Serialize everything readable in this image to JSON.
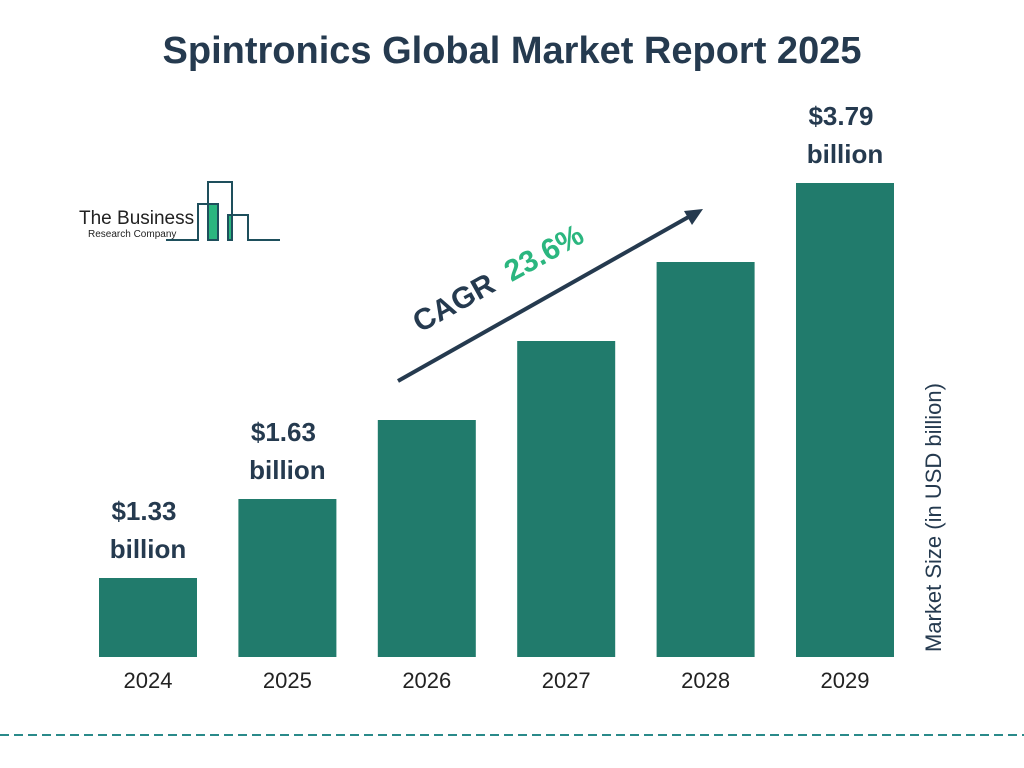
{
  "title": "Spintronics Global Market Report 2025",
  "logo": {
    "line1": "The Business",
    "line2": "Research Company"
  },
  "colors": {
    "bar": "#217b6c",
    "accent": "#2bb67f",
    "text": "#253a4f"
  },
  "chart_data": {
    "type": "bar",
    "title": "Spintronics Global Market Report 2025",
    "categories": [
      "2024",
      "2025",
      "2026",
      "2027",
      "2028",
      "2029"
    ],
    "values": [
      1.33,
      1.63,
      null,
      null,
      null,
      3.79
    ],
    "data_labels": [
      [
        "$1.33",
        "billion"
      ],
      [
        "$1.63",
        "billion"
      ],
      null,
      null,
      null,
      [
        "$3.79",
        "billion"
      ]
    ],
    "ylabel": "Market Size (in USD billion)",
    "xlabel": "",
    "annotation": {
      "label": "CAGR",
      "value": "23.6%"
    },
    "grid": false
  }
}
